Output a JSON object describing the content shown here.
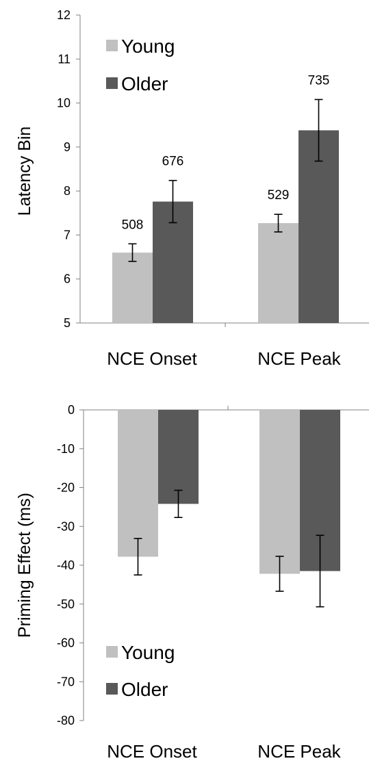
{
  "colors": {
    "young": "#c0c0c0",
    "older": "#595959",
    "axis": "#808080"
  },
  "chart_data": [
    {
      "type": "bar",
      "categories": [
        "NCE Onset",
        "NCE Peak"
      ],
      "ylabel": "Latency Bin",
      "ylim": [
        5,
        12
      ],
      "yticks": [
        5,
        6,
        7,
        8,
        9,
        10,
        11,
        12
      ],
      "legend_position": "top-left",
      "grid": false,
      "series": [
        {
          "name": "Young",
          "values": [
            6.6,
            7.27
          ],
          "error": [
            0.2,
            0.2
          ],
          "labels": [
            "508",
            "529"
          ]
        },
        {
          "name": "Older",
          "values": [
            7.76,
            9.38
          ],
          "error": [
            0.48,
            0.7
          ],
          "labels": [
            "676",
            "735"
          ]
        }
      ]
    },
    {
      "type": "bar",
      "categories": [
        "NCE Onset",
        "NCE Peak"
      ],
      "ylabel": "Priming Effect (ms)",
      "ylim": [
        -80,
        0
      ],
      "yticks": [
        0,
        -10,
        -20,
        -30,
        -40,
        -50,
        -60,
        -70,
        -80
      ],
      "legend_position": "bottom-left",
      "grid": false,
      "series": [
        {
          "name": "Young",
          "values": [
            -37.8,
            -42.2
          ],
          "error": [
            4.7,
            4.5
          ]
        },
        {
          "name": "Older",
          "values": [
            -24.2,
            -41.5
          ],
          "error": [
            3.5,
            9.2
          ]
        }
      ]
    }
  ]
}
